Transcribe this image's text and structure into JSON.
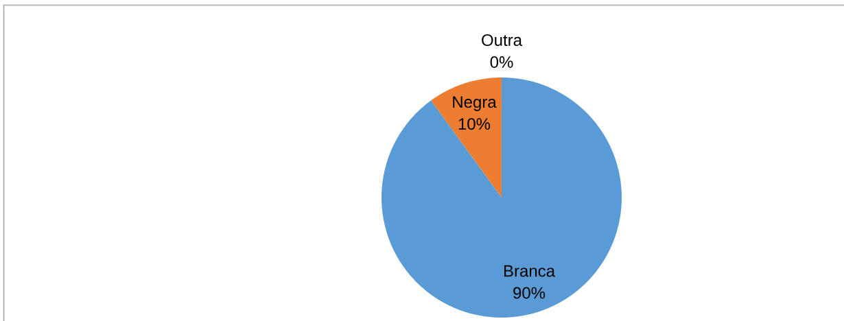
{
  "chart_data": {
    "type": "pie",
    "categories": [
      "Branca",
      "Negra",
      "Outra"
    ],
    "values": [
      90,
      10,
      0
    ],
    "colors": [
      "#5b9bd5",
      "#ed7d31",
      "#a5a5a5"
    ],
    "value_labels": [
      "90%",
      "10%",
      "0%"
    ]
  }
}
